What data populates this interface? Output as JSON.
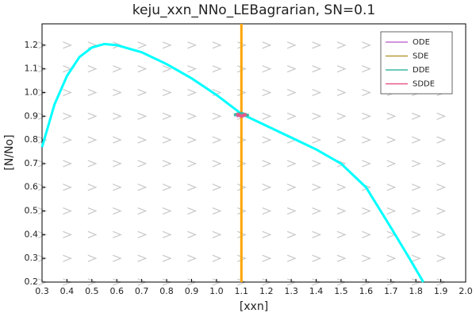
{
  "chart_data": {
    "type": "line",
    "title": "keju_xxn_NNo_LEBagrarian, SN=0.1",
    "x_label": "[xxn]",
    "y_label": "[N/No]",
    "xlim": [
      0.3,
      2.0
    ],
    "xticks": [
      0.3,
      0.4,
      0.5,
      0.6,
      0.7,
      0.8,
      0.9,
      {
        "value": 1,
        "label": "1.0"
      },
      1.1,
      1.2,
      1.3,
      1.4,
      1.5,
      1.6,
      1.7,
      1.8,
      1.9,
      {
        "value": 2,
        "label": "2.0"
      }
    ],
    "ylim": [
      0.2,
      1.29
    ],
    "yticks": [
      0.2,
      0.3,
      0.4,
      0.5,
      0.6,
      0.7,
      0.8,
      0.9,
      {
        "value": 1,
        "label": "1.0"
      },
      1.1,
      1.2
    ],
    "legend": "top-right",
    "series": [
      {
        "name": "ODE",
        "color": "#c371d2",
        "x": [
          1.08,
          1.1,
          1.12
        ],
        "y": [
          0.9,
          0.91,
          0.905
        ]
      },
      {
        "name": "SDE",
        "color": "#b89a3a",
        "x": [
          1.09,
          1.1,
          1.11
        ],
        "y": [
          0.905,
          0.9,
          0.91
        ]
      },
      {
        "name": "DDE",
        "color": "#3eb8a4",
        "x": [
          1.07,
          1.1,
          1.13
        ],
        "y": [
          0.905,
          0.912,
          0.902
        ]
      },
      {
        "name": "SDDE",
        "color": "#e8588a",
        "x": [
          1.08,
          1.1,
          1.12
        ],
        "y": [
          0.91,
          0.9,
          0.908
        ]
      }
    ],
    "lines": [
      {
        "color": "#00ffff",
        "x": [
          0.3,
          0.35,
          0.4,
          0.45,
          0.5,
          0.55,
          0.6,
          0.7,
          0.8,
          0.9,
          1.0,
          1.1,
          1.2,
          1.3,
          1.4,
          1.5,
          1.6,
          1.7,
          1.78,
          1.83
        ],
        "y": [
          0.77,
          0.95,
          1.07,
          1.15,
          1.19,
          1.205,
          1.2,
          1.17,
          1.12,
          1.06,
          0.99,
          0.91,
          0.86,
          0.81,
          0.76,
          0.7,
          0.6,
          0.43,
          0.29,
          0.2
        ]
      },
      {
        "color": "#ffa500",
        "x": [
          1.1,
          1.1
        ],
        "y": [
          0.2,
          1.29
        ]
      }
    ]
  }
}
